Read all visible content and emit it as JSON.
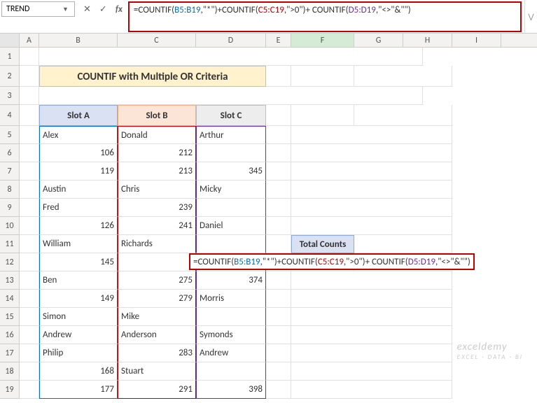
{
  "namebox": {
    "value": "TREND"
  },
  "formula_bar": {
    "prefix1": "=COUNTIF(",
    "ref_b": "B5:B19",
    "mid1": ",\"*\")+COUNTIF(",
    "ref_c": "C5:C19",
    "mid2": ",\">0\")+ COUNTIF(",
    "ref_d": "D5:D19",
    "suffix": ",\"<>\"&\"\")"
  },
  "columns": {
    "A": 28,
    "B": 112,
    "C": 112,
    "D": 100,
    "E": 36,
    "F": 90,
    "G": 70,
    "H": 70,
    "I": 70
  },
  "col_labels": [
    "A",
    "B",
    "C",
    "D",
    "E",
    "F",
    "G",
    "H",
    "I"
  ],
  "row_labels": [
    "1",
    "2",
    "3",
    "4",
    "5",
    "6",
    "7",
    "8",
    "9",
    "10",
    "11",
    "12",
    "13",
    "14",
    "15",
    "16",
    "17",
    "18",
    "19"
  ],
  "title": "COUNTIF with Multiple OR Criteria",
  "headers": {
    "b": "Slot A",
    "c": "Slot B",
    "d": "Slot C"
  },
  "total_counts_label": "Total Counts",
  "data": {
    "b": [
      "Alex",
      "106",
      "119",
      "Austin",
      "Fred",
      "126",
      "William",
      "145",
      "Ben",
      "149",
      "Simon",
      "Andrew",
      "Philip",
      "168",
      "177"
    ],
    "c": [
      "Donald",
      "212",
      "213",
      "Chris",
      "239",
      "241",
      "Richards",
      "",
      "275",
      "279",
      "Mike",
      "Anderson",
      "283",
      "Stuart",
      "291"
    ],
    "d": [
      "Arthur",
      "",
      "345",
      "Micky",
      "",
      "Daniel",
      "",
      "",
      "374",
      "Morris",
      "",
      "Symonds",
      "Andrew",
      "",
      "398"
    ]
  },
  "inline_formula": "=COUNTIF(B5:B19,\"*\")+COUNTIF(C5:C19,\">0\")+ COUNTIF(D5:D19,\"<>\"&\"\")",
  "watermark": {
    "main": "exceldemy",
    "sub": "EXCEL · DATA · BI"
  },
  "colors": {
    "title_bg": "#fff2cc",
    "slot_a_bg": "#d9e1f2",
    "slot_b_bg": "#fce4d6",
    "slot_c_bg": "#ededed",
    "formula_border": "#c00000"
  }
}
